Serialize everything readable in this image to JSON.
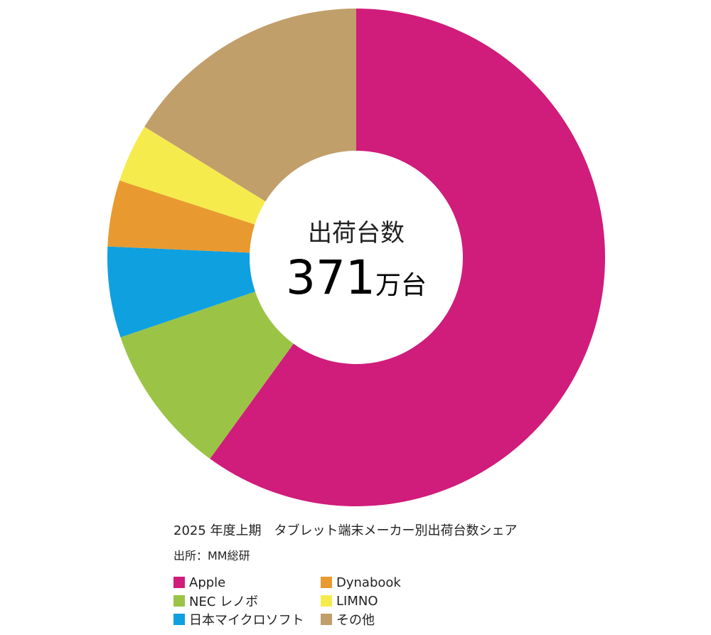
{
  "chart_data": {
    "type": "pie",
    "style": "donut",
    "title": "2025 年度上期　タブレット端末メーカー別出荷台数シェア",
    "source": "出所：MM総研",
    "center_title": "出荷台数",
    "center_total_value": "371",
    "center_total_unit": "万台",
    "slices": [
      {
        "name": "Apple",
        "value": 60.0,
        "color": "#D01C7B"
      },
      {
        "name": "NEC レノボ",
        "value": 9.8,
        "color": "#9BC446"
      },
      {
        "name": "日本マイクロソフト",
        "value": 5.9,
        "color": "#0FA0E0"
      },
      {
        "name": "Dynabook",
        "value": 4.3,
        "color": "#E89A30"
      },
      {
        "name": "LIMNO",
        "value": 3.8,
        "color": "#F6EB4D"
      },
      {
        "name": "その他",
        "value": 16.2,
        "color": "#C19F6A"
      }
    ],
    "legend_position": "bottom-left"
  }
}
